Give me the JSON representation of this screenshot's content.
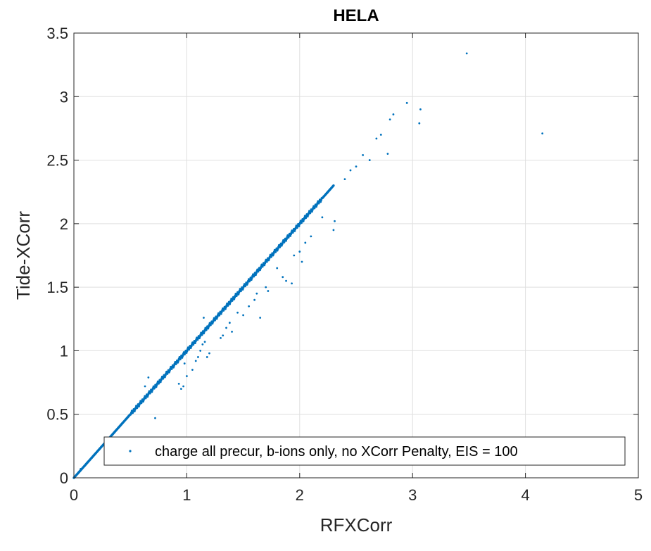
{
  "chart_data": {
    "type": "scatter",
    "title": "HELA",
    "xlabel": "RFXCorr",
    "ylabel": "Tide-XCorr",
    "xlim": [
      0,
      5
    ],
    "ylim": [
      0,
      3.5
    ],
    "xticks": [
      0,
      1,
      2,
      3,
      4,
      5
    ],
    "yticks": [
      0,
      0.5,
      1,
      1.5,
      2,
      2.5,
      3,
      3.5
    ],
    "xtick_labels": [
      "0",
      "1",
      "2",
      "3",
      "4",
      "5"
    ],
    "ytick_labels": [
      "0",
      "0.5",
      "1",
      "1.5",
      "2",
      "2.5",
      "3",
      "3.5"
    ],
    "grid": true,
    "legend_position": "bottom-right",
    "series": [
      {
        "name": "charge all precur, b-ions only, no XCorr Penalty, EIS = 100",
        "color": "#0072BD",
        "marker": "dot",
        "trend": {
          "description": "dense points along y = x from 0 to about 2.3",
          "x_range": [
            0,
            2.3
          ]
        },
        "points": [
          [
            0.0,
            0.0
          ],
          [
            0.06,
            0.07
          ],
          [
            0.1,
            0.1
          ],
          [
            0.15,
            0.15
          ],
          [
            0.2,
            0.2
          ],
          [
            0.66,
            0.79
          ],
          [
            0.63,
            0.72
          ],
          [
            0.72,
            0.47
          ],
          [
            0.93,
            0.74
          ],
          [
            0.95,
            0.7
          ],
          [
            0.97,
            0.72
          ],
          [
            1.0,
            0.8
          ],
          [
            0.98,
            0.9
          ],
          [
            1.05,
            0.85
          ],
          [
            1.08,
            0.92
          ],
          [
            1.1,
            0.95
          ],
          [
            1.12,
            1.0
          ],
          [
            1.14,
            1.05
          ],
          [
            1.16,
            1.07
          ],
          [
            1.18,
            0.95
          ],
          [
            1.2,
            0.98
          ],
          [
            1.15,
            1.26
          ],
          [
            1.3,
            1.1
          ],
          [
            1.32,
            1.12
          ],
          [
            1.35,
            1.18
          ],
          [
            1.38,
            1.22
          ],
          [
            1.4,
            1.15
          ],
          [
            1.45,
            1.3
          ],
          [
            1.5,
            1.28
          ],
          [
            1.55,
            1.35
          ],
          [
            1.6,
            1.4
          ],
          [
            1.62,
            1.45
          ],
          [
            1.65,
            1.26
          ],
          [
            1.7,
            1.5
          ],
          [
            1.72,
            1.47
          ],
          [
            1.8,
            1.65
          ],
          [
            1.85,
            1.58
          ],
          [
            1.88,
            1.55
          ],
          [
            1.93,
            1.53
          ],
          [
            1.95,
            1.75
          ],
          [
            2.0,
            1.78
          ],
          [
            2.02,
            1.7
          ],
          [
            2.05,
            1.85
          ],
          [
            2.1,
            1.9
          ],
          [
            2.2,
            2.05
          ],
          [
            2.3,
            1.95
          ],
          [
            2.31,
            2.02
          ],
          [
            2.4,
            2.35
          ],
          [
            2.45,
            2.42
          ],
          [
            2.5,
            2.45
          ],
          [
            2.56,
            2.54
          ],
          [
            2.62,
            2.5
          ],
          [
            2.68,
            2.67
          ],
          [
            2.72,
            2.7
          ],
          [
            2.78,
            2.55
          ],
          [
            2.8,
            2.82
          ],
          [
            2.83,
            2.86
          ],
          [
            2.95,
            2.95
          ],
          [
            3.06,
            2.79
          ],
          [
            3.07,
            2.9
          ],
          [
            3.48,
            3.34
          ],
          [
            4.15,
            2.71
          ]
        ]
      }
    ]
  }
}
